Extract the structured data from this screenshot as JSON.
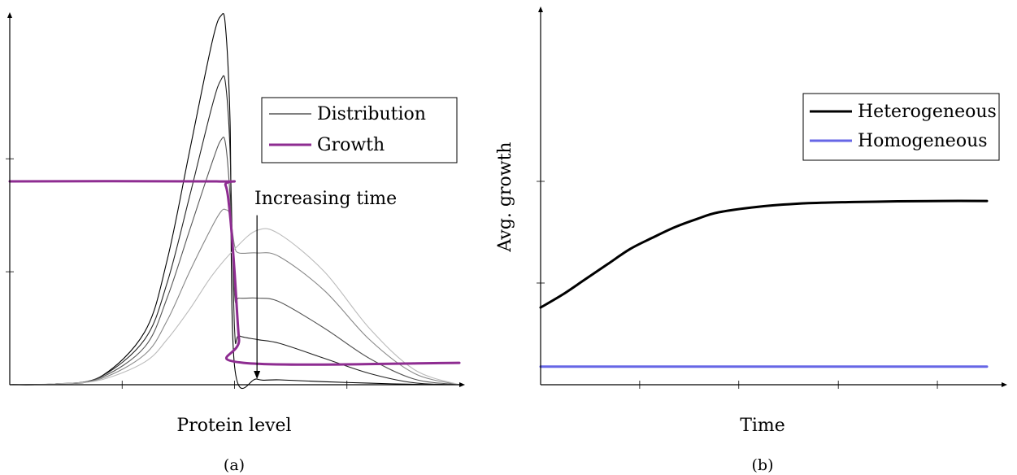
{
  "chart_data": [
    {
      "type": "line",
      "panel_label": "(a)",
      "xlabel": "Protein level",
      "ylabel": "",
      "xlim": [
        0,
        1
      ],
      "ylim": [
        0,
        1
      ],
      "xticks": [
        0.25,
        0.5,
        0.75
      ],
      "yticks": [
        0.3,
        0.6
      ],
      "grid": false,
      "legend": {
        "position": "top-right",
        "entries": [
          {
            "label": "Distribution",
            "color": "#000000",
            "style": "thin"
          },
          {
            "label": "Growth",
            "color": "#8e2c91",
            "style": "thick"
          }
        ]
      },
      "annotation": {
        "text": "Increasing time",
        "arrow_x": 0.55,
        "arrow_from_y": 0.45,
        "arrow_to_y": 0.015
      },
      "series": [
        {
          "name": "Distribution",
          "color": "#000000",
          "x": [
            0,
            0.1,
            0.2,
            0.3,
            0.35,
            0.4,
            0.45,
            0.47,
            0.48,
            0.49,
            0.5,
            0.55,
            0.6,
            0.7,
            0.8,
            0.9,
            1.0
          ],
          "values": [
            0,
            0.002,
            0.02,
            0.14,
            0.33,
            0.62,
            0.91,
            0.98,
            0.95,
            0.7,
            0.05,
            0.015,
            0.013,
            0.008,
            0.004,
            0.001,
            0
          ]
        },
        {
          "name": "Distribution",
          "color": "#222222",
          "x": [
            0,
            0.1,
            0.2,
            0.3,
            0.35,
            0.4,
            0.45,
            0.47,
            0.48,
            0.49,
            0.5,
            0.51,
            0.55,
            0.6,
            0.7,
            0.8,
            0.9,
            1.0
          ],
          "values": [
            0,
            0.002,
            0.02,
            0.12,
            0.27,
            0.5,
            0.74,
            0.81,
            0.8,
            0.62,
            0.15,
            0.13,
            0.12,
            0.11,
            0.07,
            0.03,
            0.005,
            0
          ]
        },
        {
          "name": "Distribution",
          "color": "#555555",
          "x": [
            0,
            0.1,
            0.2,
            0.3,
            0.35,
            0.4,
            0.45,
            0.47,
            0.48,
            0.49,
            0.5,
            0.51,
            0.55,
            0.6,
            0.7,
            0.8,
            0.9,
            1.0
          ],
          "values": [
            0,
            0.002,
            0.018,
            0.1,
            0.23,
            0.41,
            0.59,
            0.65,
            0.64,
            0.5,
            0.24,
            0.23,
            0.23,
            0.22,
            0.15,
            0.07,
            0.015,
            0
          ]
        },
        {
          "name": "Distribution",
          "color": "#888888",
          "x": [
            0,
            0.1,
            0.2,
            0.3,
            0.35,
            0.4,
            0.45,
            0.47,
            0.48,
            0.49,
            0.5,
            0.51,
            0.55,
            0.6,
            0.7,
            0.8,
            0.9,
            1.0
          ],
          "values": [
            0,
            0.002,
            0.015,
            0.08,
            0.17,
            0.3,
            0.42,
            0.46,
            0.465,
            0.45,
            0.37,
            0.35,
            0.35,
            0.34,
            0.25,
            0.12,
            0.03,
            0
          ]
        },
        {
          "name": "Distribution",
          "color": "#bbbbbb",
          "x": [
            0,
            0.1,
            0.2,
            0.3,
            0.35,
            0.4,
            0.45,
            0.5,
            0.55,
            0.6,
            0.7,
            0.8,
            0.9,
            1.0
          ],
          "values": [
            0,
            0.002,
            0.012,
            0.06,
            0.12,
            0.2,
            0.29,
            0.36,
            0.41,
            0.4,
            0.3,
            0.15,
            0.04,
            0
          ]
        },
        {
          "name": "Growth",
          "color": "#8e2c91",
          "x": [
            0,
            0.46,
            0.48,
            0.49,
            0.5,
            0.51,
            0.52,
            1.0
          ],
          "values": [
            0.54,
            0.54,
            0.53,
            0.45,
            0.3,
            0.12,
            0.058,
            0.058
          ]
        }
      ]
    },
    {
      "type": "line",
      "panel_label": "(b)",
      "xlabel": "Time",
      "ylabel": "Avg. growth",
      "xlim": [
        0,
        1
      ],
      "ylim": [
        0,
        1
      ],
      "xticks": [
        0.222,
        0.444,
        0.667,
        0.889
      ],
      "yticks": [
        0.27,
        0.54
      ],
      "grid": false,
      "legend": {
        "position": "top-right",
        "entries": [
          {
            "label": "Heterogeneous",
            "color": "#000000",
            "style": "thick"
          },
          {
            "label": "Homogeneous",
            "color": "#6666e6",
            "style": "thick"
          }
        ]
      },
      "series": [
        {
          "name": "Heterogeneous",
          "color": "#000000",
          "x": [
            0,
            0.05,
            0.1,
            0.15,
            0.2,
            0.25,
            0.3,
            0.35,
            0.4,
            0.5,
            0.6,
            0.7,
            0.8,
            0.9,
            1.0
          ],
          "values": [
            0.205,
            0.24,
            0.28,
            0.32,
            0.36,
            0.39,
            0.418,
            0.44,
            0.458,
            0.474,
            0.482,
            0.485,
            0.487,
            0.488,
            0.488
          ]
        },
        {
          "name": "Homogeneous",
          "color": "#6666e6",
          "x": [
            0,
            1.0
          ],
          "values": [
            0.048,
            0.048
          ]
        }
      ]
    }
  ]
}
